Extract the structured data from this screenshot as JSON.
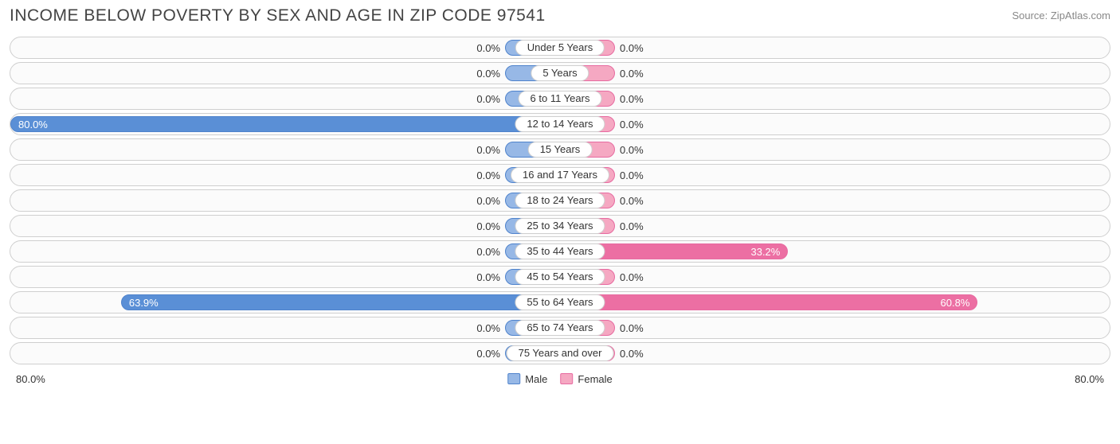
{
  "title": "INCOME BELOW POVERTY BY SEX AND AGE IN ZIP CODE 97541",
  "source": "Source: ZipAtlas.com",
  "axis_max": 80.0,
  "axis_label_left": "80.0%",
  "axis_label_right": "80.0%",
  "min_bar_pct": 10.0,
  "colors": {
    "male_fill": "#97b8e6",
    "male_border": "#4f83cc",
    "male_strong": "#5a8fd6",
    "female_fill": "#f5a8c2",
    "female_border": "#e76aa0",
    "female_strong": "#ec6fa3",
    "row_border": "#cfcfcf",
    "row_bg": "#fbfbfb",
    "text": "#333333",
    "title_color": "#444444",
    "source_color": "#888888"
  },
  "legend": {
    "male": "Male",
    "female": "Female"
  },
  "rows": [
    {
      "label": "Under 5 Years",
      "male": 0.0,
      "female": 0.0,
      "male_label": "0.0%",
      "female_label": "0.0%"
    },
    {
      "label": "5 Years",
      "male": 0.0,
      "female": 0.0,
      "male_label": "0.0%",
      "female_label": "0.0%"
    },
    {
      "label": "6 to 11 Years",
      "male": 0.0,
      "female": 0.0,
      "male_label": "0.0%",
      "female_label": "0.0%"
    },
    {
      "label": "12 to 14 Years",
      "male": 80.0,
      "female": 0.0,
      "male_label": "80.0%",
      "female_label": "0.0%"
    },
    {
      "label": "15 Years",
      "male": 0.0,
      "female": 0.0,
      "male_label": "0.0%",
      "female_label": "0.0%"
    },
    {
      "label": "16 and 17 Years",
      "male": 0.0,
      "female": 0.0,
      "male_label": "0.0%",
      "female_label": "0.0%"
    },
    {
      "label": "18 to 24 Years",
      "male": 0.0,
      "female": 0.0,
      "male_label": "0.0%",
      "female_label": "0.0%"
    },
    {
      "label": "25 to 34 Years",
      "male": 0.0,
      "female": 0.0,
      "male_label": "0.0%",
      "female_label": "0.0%"
    },
    {
      "label": "35 to 44 Years",
      "male": 0.0,
      "female": 33.2,
      "male_label": "0.0%",
      "female_label": "33.2%"
    },
    {
      "label": "45 to 54 Years",
      "male": 0.0,
      "female": 0.0,
      "male_label": "0.0%",
      "female_label": "0.0%"
    },
    {
      "label": "55 to 64 Years",
      "male": 63.9,
      "female": 60.8,
      "male_label": "63.9%",
      "female_label": "60.8%"
    },
    {
      "label": "65 to 74 Years",
      "male": 0.0,
      "female": 0.0,
      "male_label": "0.0%",
      "female_label": "0.0%"
    },
    {
      "label": "75 Years and over",
      "male": 0.0,
      "female": 0.0,
      "male_label": "0.0%",
      "female_label": "0.0%"
    }
  ]
}
